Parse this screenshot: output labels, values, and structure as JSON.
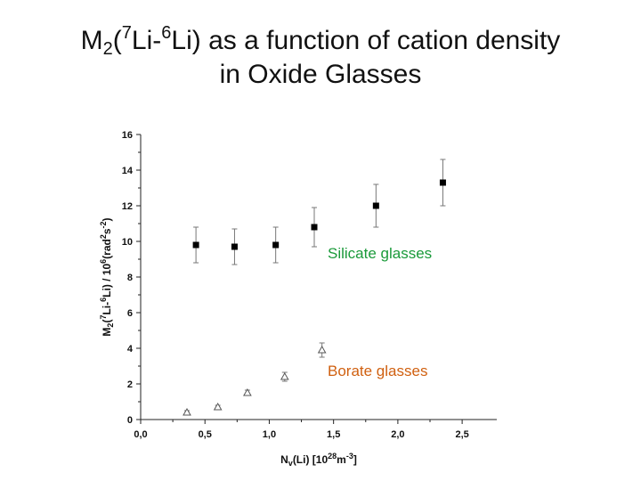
{
  "title": {
    "line1_a": "M",
    "line1_sub": "2",
    "line1_b": "(",
    "line1_sup1": "7",
    "line1_c": "Li-",
    "line1_sup2": "6",
    "line1_d": "Li) as a function of cation density",
    "line2": "in Oxide Glasses"
  },
  "chart_data": {
    "type": "scatter",
    "title": "M2(7Li-6Li) as a function of cation density in Oxide Glasses",
    "xlabel": {
      "a": "N",
      "sub": "v",
      "b": "(Li) [10",
      "sup1": "28",
      "c": "m",
      "sup2": "-3",
      "d": "]"
    },
    "ylabel": {
      "a": "M",
      "sub": "2",
      "b": "(",
      "sup1": "7",
      "c": "Li-",
      "sup2": "6",
      "d": "Li) / 10",
      "sup3": "6",
      "e": "(rad",
      "sup4": "2",
      "f": "s",
      "sup5": "-2",
      "g": ")"
    },
    "xlim": [
      0.0,
      2.7
    ],
    "ylim": [
      0,
      16
    ],
    "xticks": [
      "0,0",
      "0,5",
      "1,0",
      "1,5",
      "2,0",
      "2,5"
    ],
    "xtick_values": [
      0.0,
      0.5,
      1.0,
      1.5,
      2.0,
      2.5
    ],
    "yticks": [
      "0",
      "2",
      "4",
      "6",
      "8",
      "10",
      "12",
      "14",
      "16"
    ],
    "ytick_values": [
      0,
      2,
      4,
      6,
      8,
      10,
      12,
      14,
      16
    ],
    "grid": false,
    "series": [
      {
        "name": "Silicate glasses",
        "marker": "filled-square",
        "color": "#000000",
        "label_color": "#1a9a3a",
        "points": [
          {
            "x": 0.43,
            "y": 9.8,
            "err": 1.0
          },
          {
            "x": 0.73,
            "y": 9.7,
            "err": 1.0
          },
          {
            "x": 1.05,
            "y": 9.8,
            "err": 1.0
          },
          {
            "x": 1.35,
            "y": 10.8,
            "err": 1.1
          },
          {
            "x": 1.83,
            "y": 12.0,
            "err": 1.2
          },
          {
            "x": 2.35,
            "y": 13.3,
            "err": 1.3
          }
        ]
      },
      {
        "name": "Borate glasses",
        "marker": "open-triangle",
        "color": "#555555",
        "label_color": "#d06010",
        "points": [
          {
            "x": 0.36,
            "y": 0.4,
            "err": 0.1
          },
          {
            "x": 0.6,
            "y": 0.7,
            "err": 0.1
          },
          {
            "x": 0.83,
            "y": 1.5,
            "err": 0.15
          },
          {
            "x": 1.12,
            "y": 2.4,
            "err": 0.25
          },
          {
            "x": 1.41,
            "y": 3.9,
            "err": 0.4
          }
        ]
      }
    ]
  }
}
